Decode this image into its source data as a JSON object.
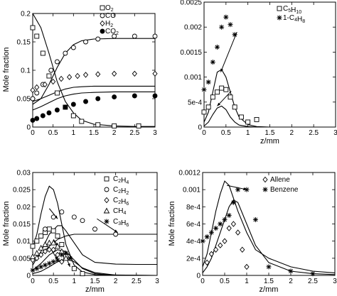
{
  "chart_data": [
    {
      "type": "scatter",
      "panel": "top-left",
      "xlabel": "",
      "ylabel": "Mole fraction",
      "xlim": [
        0,
        3
      ],
      "ylim": [
        0,
        0.2
      ],
      "xticks": [
        0,
        0.5,
        1,
        1.5,
        2,
        2.5,
        3
      ],
      "xtick_labels": [
        "0",
        "0.5",
        "1",
        "1.5",
        "2",
        "2.5",
        "3"
      ],
      "yticks": [
        0,
        0.05,
        0.1,
        0.15,
        0.2
      ],
      "ytick_labels": [
        "0",
        "0.05",
        "0.1",
        "0.15",
        "0.2"
      ],
      "legend_position": "top-right",
      "series": [
        {
          "legend": "O",
          "sub": "2",
          "marker": "square",
          "x": [
            0,
            0.1,
            0.25,
            0.4,
            0.6,
            0.8,
            1.0,
            1.2,
            1.6,
            2.0,
            2.6
          ],
          "y": [
            0.175,
            0.16,
            0.13,
            0.09,
            0.06,
            0.035,
            0.02,
            0.01,
            0.004,
            0.002,
            0.002
          ]
        },
        {
          "legend": "CO",
          "sub": "",
          "marker": "circle-open",
          "x": [
            0,
            0.1,
            0.25,
            0.45,
            0.6,
            0.8,
            1.0,
            1.3,
            1.6,
            2.0,
            2.5,
            3.0
          ],
          "y": [
            0.05,
            0.06,
            0.075,
            0.1,
            0.115,
            0.13,
            0.14,
            0.15,
            0.155,
            0.16,
            0.16,
            0.16
          ]
        },
        {
          "legend": "H",
          "sub": "2",
          "marker": "diamond",
          "x": [
            0,
            0.1,
            0.3,
            0.5,
            0.7,
            0.9,
            1.1,
            1.3,
            1.6,
            2.0,
            2.5,
            3.0
          ],
          "y": [
            0.065,
            0.07,
            0.075,
            0.08,
            0.085,
            0.088,
            0.09,
            0.092,
            0.093,
            0.094,
            0.094,
            0.094
          ]
        },
        {
          "legend": "CO",
          "sub": "2",
          "marker": "circle-filled",
          "x": [
            0,
            0.1,
            0.25,
            0.4,
            0.6,
            0.8,
            1.0,
            1.3,
            1.6,
            2.0,
            2.5,
            3.0
          ],
          "y": [
            0.012,
            0.015,
            0.02,
            0.025,
            0.03,
            0.035,
            0.04,
            0.045,
            0.05,
            0.053,
            0.055,
            0.055
          ]
        }
      ],
      "curves": [
        {
          "x": [
            0,
            0.2,
            0.4,
            0.6,
            0.8,
            1.0,
            1.2,
            1.5,
            2.0,
            2.5,
            3.0
          ],
          "y": [
            0.2,
            0.175,
            0.13,
            0.08,
            0.045,
            0.025,
            0.012,
            0.005,
            0.002,
            0.001,
            0.001
          ]
        },
        {
          "x": [
            0,
            0.2,
            0.4,
            0.6,
            0.8,
            1.0,
            1.2,
            1.5,
            2.0,
            2.5,
            3.0
          ],
          "y": [
            0.04,
            0.05,
            0.075,
            0.105,
            0.13,
            0.145,
            0.152,
            0.155,
            0.156,
            0.156,
            0.156
          ]
        },
        {
          "x": [
            0,
            0.2,
            0.4,
            0.6,
            0.8,
            1.0,
            1.2,
            1.5,
            2.0,
            2.5,
            3.0
          ],
          "y": [
            0.045,
            0.05,
            0.056,
            0.062,
            0.067,
            0.07,
            0.071,
            0.072,
            0.072,
            0.072,
            0.072
          ]
        },
        {
          "x": [
            0,
            0.2,
            0.4,
            0.6,
            0.8,
            1.0,
            1.2,
            1.5,
            2.0,
            2.5,
            3.0
          ],
          "y": [
            0.03,
            0.036,
            0.043,
            0.05,
            0.055,
            0.058,
            0.06,
            0.061,
            0.062,
            0.062,
            0.062
          ]
        }
      ]
    },
    {
      "type": "scatter",
      "panel": "top-right",
      "xlabel": "z/mm",
      "ylabel": "",
      "xlim": [
        0,
        3
      ],
      "ylim": [
        0,
        0.0025
      ],
      "xticks": [
        0,
        0.5,
        1,
        1.5,
        2,
        2.5,
        3
      ],
      "xtick_labels": [
        "0",
        "0.5",
        "1",
        "1.5",
        "2",
        "2.5",
        "3"
      ],
      "yticks": [
        0,
        0.0005,
        0.001,
        0.0015,
        0.002,
        0.0025
      ],
      "ytick_labels": [
        "0",
        "5e-4",
        "0.001",
        "0.0015",
        "0.002",
        "0.0025"
      ],
      "legend_position": "top-right",
      "series": [
        {
          "legend": "C",
          "sub": "5",
          "legend2": "H",
          "sub2": "10",
          "marker": "square",
          "x": [
            0,
            0.1,
            0.2,
            0.3,
            0.4,
            0.5,
            0.6,
            0.7,
            0.85,
            1.0,
            1.2
          ],
          "y": [
            0.0003,
            0.0004,
            0.0006,
            0.0007,
            0.00078,
            0.00075,
            0.0006,
            0.0004,
            0.0002,
            0.0001,
            0.00015
          ]
        },
        {
          "legend": "1-C",
          "sub": "4",
          "legend2": "H",
          "sub2": "8",
          "marker": "asterisk",
          "x": [
            0,
            0.1,
            0.2,
            0.3,
            0.4,
            0.5,
            0.6,
            0.7
          ],
          "y": [
            0.00075,
            0.0009,
            0.0013,
            0.0016,
            0.002,
            0.0022,
            0.00205,
            0.00185
          ]
        }
      ],
      "curves": [
        {
          "x": [
            0,
            0.1,
            0.2,
            0.3,
            0.4,
            0.5,
            0.6,
            0.7,
            0.8,
            1.0,
            1.2,
            1.5,
            3.0
          ],
          "y": [
            0.0001,
            0.0003,
            0.0007,
            0.0011,
            0.00115,
            0.001,
            0.0007,
            0.0004,
            0.0002,
            5e-05,
            1e-05,
            0,
            0
          ]
        },
        {
          "x": [
            0,
            0.1,
            0.2,
            0.3,
            0.4,
            0.5,
            0.6,
            0.7,
            0.8,
            1.0,
            1.2,
            1.5,
            3.0
          ],
          "y": [
            2e-05,
            0.0001,
            0.00025,
            0.00038,
            0.00042,
            0.00035,
            0.0002,
            0.0001,
            4e-05,
            1e-05,
            0,
            0,
            0
          ]
        }
      ],
      "arrows": [
        {
          "from": [
            0.75,
            0.0019
          ],
          "to": [
            0.38,
            0.0011
          ]
        },
        {
          "from": [
            0.62,
            0.00072
          ],
          "to": [
            0.3,
            0.00042
          ]
        }
      ]
    },
    {
      "type": "scatter",
      "panel": "bottom-left",
      "xlabel": "z/mm",
      "ylabel": "Mole fraction",
      "xlim": [
        0,
        3
      ],
      "ylim": [
        0,
        0.03
      ],
      "xticks": [
        0,
        0.5,
        1,
        1.5,
        2,
        2.5,
        3
      ],
      "xtick_labels": [
        "0",
        "0.5",
        "1",
        "1.5",
        "2",
        "2.5",
        "3"
      ],
      "yticks": [
        0,
        0.005,
        0.01,
        0.015,
        0.02,
        0.025,
        0.03
      ],
      "ytick_labels": [
        "0",
        "0.005",
        "0.01",
        "0.015",
        "0.02",
        "0.025",
        "0.03"
      ],
      "legend_position": "top-right",
      "series": [
        {
          "legend": "C",
          "sub": "2",
          "legend2": "H",
          "sub2": "4",
          "marker": "square",
          "x": [
            0,
            0.1,
            0.2,
            0.3,
            0.4,
            0.5,
            0.6,
            0.7,
            0.8,
            1.0,
            1.2
          ],
          "y": [
            0.0085,
            0.01,
            0.0115,
            0.0125,
            0.0135,
            0.013,
            0.0115,
            0.009,
            0.0055,
            0.002,
            0.0005
          ]
        },
        {
          "legend": "C",
          "sub": "2",
          "legend2": "H",
          "sub2": "2",
          "marker": "circle-open",
          "x": [
            0.3,
            0.5,
            0.7,
            1.0,
            1.2,
            1.5,
            2.0
          ],
          "y": [
            0.0135,
            0.017,
            0.0185,
            0.017,
            0.016,
            0.0135,
            0.012
          ]
        },
        {
          "legend": "C",
          "sub": "2",
          "legend2": "H",
          "sub2": "6",
          "marker": "diamond",
          "x": [
            0,
            0.1,
            0.2,
            0.3,
            0.4,
            0.5,
            0.6,
            0.7
          ],
          "y": [
            0.0045,
            0.005,
            0.006,
            0.007,
            0.0075,
            0.0075,
            0.006,
            0.004
          ]
        },
        {
          "legend": "CH",
          "sub": "4",
          "legend2": "",
          "sub2": "",
          "marker": "triangle",
          "x": [
            0,
            0.1,
            0.2,
            0.3,
            0.4,
            0.5,
            0.6,
            0.7,
            0.8
          ],
          "y": [
            0.0055,
            0.0065,
            0.008,
            0.009,
            0.0095,
            0.0095,
            0.0085,
            0.007,
            0.005
          ]
        },
        {
          "legend": "C",
          "sub": "3",
          "legend2": "H",
          "sub2": "6",
          "marker": "asterisk",
          "x": [
            0,
            0.1,
            0.2,
            0.3,
            0.4,
            0.5,
            0.6,
            0.7,
            0.8,
            0.9
          ],
          "y": [
            0.0015,
            0.002,
            0.0025,
            0.003,
            0.0035,
            0.004,
            0.0045,
            0.006,
            0.0065,
            0.005
          ]
        }
      ],
      "curves": [
        {
          "x": [
            0,
            0.1,
            0.2,
            0.3,
            0.4,
            0.5,
            0.6,
            0.7,
            0.8,
            1.0,
            1.2,
            1.5,
            3.0
          ],
          "y": [
            0.008,
            0.012,
            0.018,
            0.023,
            0.026,
            0.025,
            0.021,
            0.015,
            0.009,
            0.003,
            0.001,
            0.0002,
            0
          ]
        },
        {
          "x": [
            0,
            0.2,
            0.4,
            0.6,
            0.8,
            1.0,
            1.2,
            1.5,
            2.0,
            2.5,
            3.0
          ],
          "y": [
            0.0045,
            0.006,
            0.0085,
            0.0105,
            0.0115,
            0.012,
            0.012,
            0.012,
            0.012,
            0.012,
            0.012
          ]
        },
        {
          "x": [
            0,
            0.2,
            0.4,
            0.6,
            0.7,
            0.8,
            1.0,
            1.2,
            1.5,
            2.0,
            2.5,
            3.0
          ],
          "y": [
            0.003,
            0.007,
            0.012,
            0.0145,
            0.0145,
            0.013,
            0.0095,
            0.006,
            0.0038,
            0.0033,
            0.0032,
            0.0032
          ]
        },
        {
          "x": [
            0,
            0.2,
            0.4,
            0.6,
            0.8,
            1.0,
            1.2,
            1.5,
            2.0,
            3.0
          ],
          "y": [
            0.0015,
            0.0035,
            0.006,
            0.0075,
            0.007,
            0.0045,
            0.002,
            0.0005,
            0,
            0
          ]
        },
        {
          "x": [
            0,
            0.2,
            0.4,
            0.6,
            0.8,
            1.0,
            1.2,
            1.5,
            2.0,
            3.0
          ],
          "y": [
            0.0005,
            0.0012,
            0.0025,
            0.004,
            0.0048,
            0.004,
            0.0022,
            0.0008,
            0.0001,
            0
          ]
        }
      ],
      "arrows": [
        {
          "from": [
            0.4,
            0.0195
          ],
          "to": [
            0.6,
            0.0165
          ]
        },
        {
          "from": [
            1.55,
            0.0165
          ],
          "to": [
            2.05,
            0.0125
          ]
        },
        {
          "from": [
            0.5,
            0.0105
          ],
          "to": [
            0.62,
            0.0085
          ]
        },
        {
          "from": [
            0.45,
            0.0075
          ],
          "to": [
            0.6,
            0.0045
          ]
        },
        {
          "from": [
            0.8,
            0.0055
          ],
          "to": [
            0.9,
            0.0025
          ]
        }
      ]
    },
    {
      "type": "scatter",
      "panel": "bottom-right",
      "xlabel": "z/mm",
      "ylabel": "Mole fraction",
      "xlim": [
        0,
        3
      ],
      "ylim": [
        0,
        0.0012
      ],
      "xticks": [
        0,
        0.5,
        1,
        1.5,
        2,
        2.5,
        3
      ],
      "xtick_labels": [
        "0",
        "0.5",
        "1",
        "1.5",
        "2",
        "2.5",
        "3"
      ],
      "yticks": [
        0,
        0.0002,
        0.0004,
        0.0006,
        0.0008,
        0.001,
        0.0012
      ],
      "ytick_labels": [
        "0",
        "2e-4",
        "4e-4",
        "6e-4",
        "8e-4",
        "0.001",
        "0.0012"
      ],
      "legend_position": "top-right",
      "series": [
        {
          "legend": "Allene",
          "sub": "",
          "legend2": "",
          "sub2": "",
          "marker": "diamond",
          "x": [
            0.1,
            0.2,
            0.3,
            0.4,
            0.5,
            0.6,
            0.7,
            0.8,
            0.9,
            1.0
          ],
          "y": [
            0.00015,
            0.00025,
            0.0003,
            0.00035,
            0.0004,
            0.00055,
            0.0006,
            0.0005,
            0.0003,
            0.0001
          ]
        },
        {
          "legend": "Benzene",
          "sub": "",
          "legend2": "",
          "sub2": "",
          "marker": "asterisk",
          "x": [
            0,
            0.1,
            0.2,
            0.3,
            0.4,
            0.5,
            0.6,
            0.7,
            0.8,
            1.0,
            1.2,
            1.5,
            2.0,
            2.5
          ],
          "y": [
            0.0004,
            0.00045,
            0.0005,
            0.00055,
            0.0006,
            0.00065,
            0.0007,
            0.00085,
            0.001,
            0.001,
            0.00065,
            0.0001,
            5e-05,
            2e-05
          ]
        }
      ],
      "curves": [
        {
          "x": [
            0,
            0.1,
            0.2,
            0.3,
            0.4,
            0.5,
            0.6,
            0.7,
            0.8,
            1.0,
            1.2,
            1.5,
            2.0,
            2.5,
            3.0
          ],
          "y": [
            0.0001,
            0.00025,
            0.0005,
            0.00075,
            0.00095,
            0.0011,
            0.00105,
            0.0009,
            0.00075,
            0.0005,
            0.0003,
            0.0002,
            0.0001,
            5e-05,
            3e-05
          ]
        },
        {
          "x": [
            0,
            0.1,
            0.2,
            0.3,
            0.4,
            0.5,
            0.6,
            0.7,
            0.8,
            1.0,
            1.2,
            1.5,
            2.0,
            2.5,
            3.0
          ],
          "y": [
            3e-05,
            0.0001,
            0.0002,
            0.00035,
            0.0005,
            0.00065,
            0.0008,
            0.00088,
            0.00085,
            0.0006,
            0.00035,
            0.00015,
            5e-05,
            2e-05,
            1e-05
          ]
        }
      ],
      "arrows": [
        {
          "from": [
            0.55,
            0.00105
          ],
          "to": [
            1.0,
            0.001
          ]
        }
      ]
    }
  ]
}
